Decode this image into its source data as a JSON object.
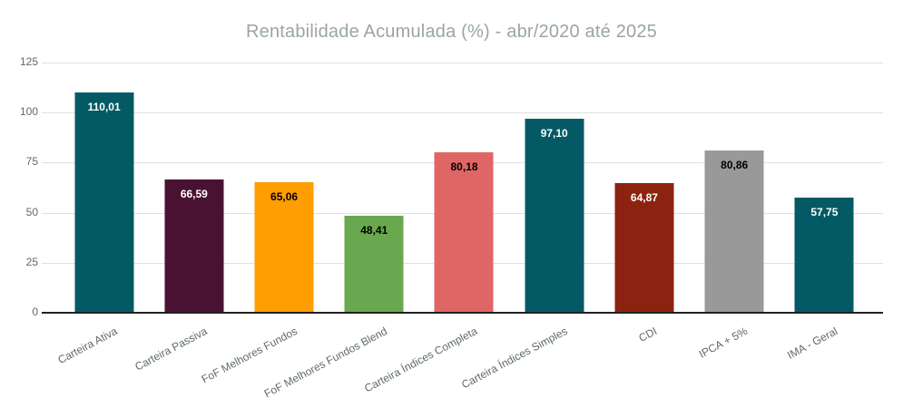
{
  "chart_data": {
    "type": "bar",
    "title": "Rentabilidade Acumulada (%) - abr/2020 até 2025",
    "categories": [
      "Carteira Ativa",
      "Carteira Passiva",
      "FoF Melhores Fundos",
      "FoF Melhores Fundos Blend",
      "Carteira Índices Completa",
      "Carteira Índices Simples",
      "CDI",
      "IPCA + 5%",
      "IMA - Geral"
    ],
    "values": [
      110.01,
      66.59,
      65.06,
      48.41,
      80.18,
      97.1,
      64.87,
      80.86,
      57.75
    ],
    "value_labels": [
      "110,01",
      "66,59",
      "65,06",
      "48,41",
      "80,18",
      "97,10",
      "64,87",
      "80,86",
      "57,75"
    ],
    "bar_colors": [
      "#045A64",
      "#4A1232",
      "#FF9E00",
      "#6AA84F",
      "#E06666",
      "#045A64",
      "#8C2310",
      "#999999",
      "#045A64"
    ],
    "value_label_colors": [
      "#FFFFFF",
      "#FFFFFF",
      "#000000",
      "#000000",
      "#000000",
      "#FFFFFF",
      "#FFFFFF",
      "#000000",
      "#FFFFFF"
    ],
    "xlabel": "",
    "ylabel": "",
    "ylim": [
      0,
      125
    ],
    "yticks": [
      0,
      25,
      50,
      75,
      100,
      125
    ],
    "ytick_labels": [
      "0",
      "25",
      "50",
      "75",
      "100",
      "125"
    ],
    "grid": true,
    "legend": "none",
    "title_color": "#9AA6A4",
    "axis_label_color": "#5F6A6A",
    "gridline_color": "#E0E0E0",
    "baseline_color": "#212121",
    "background_color": "#FFFFFF"
  }
}
